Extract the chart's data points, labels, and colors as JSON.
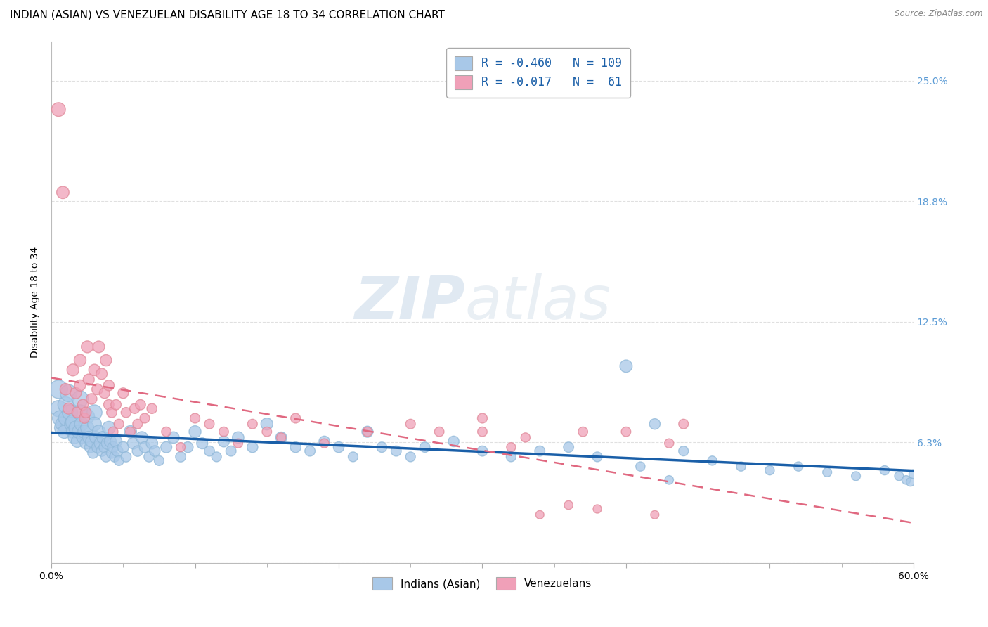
{
  "title": "INDIAN (ASIAN) VS VENEZUELAN DISABILITY AGE 18 TO 34 CORRELATION CHART",
  "source": "Source: ZipAtlas.com",
  "ylabel": "Disability Age 18 to 34",
  "xlim": [
    0.0,
    0.6
  ],
  "ylim": [
    0.0,
    0.27
  ],
  "ytick_vals": [
    0.0,
    0.0625,
    0.125,
    0.1875,
    0.25
  ],
  "ytick_labels": [
    "",
    "6.3%",
    "12.5%",
    "18.8%",
    "25.0%"
  ],
  "xtick_vals": [
    0.0,
    0.1,
    0.2,
    0.3,
    0.4,
    0.5,
    0.6
  ],
  "xtick_labels_sparse": [
    "0.0%",
    "",
    "",
    "",
    "",
    "",
    "60.0%"
  ],
  "blue_color": "#a8c8e8",
  "pink_color": "#f0a0b8",
  "blue_edge_color": "#90b8d8",
  "pink_edge_color": "#e08898",
  "blue_line_color": "#1a5fa8",
  "pink_line_color": "#e06880",
  "grid_color": "#e0e0e0",
  "background_color": "#ffffff",
  "watermark_zip": "ZIP",
  "watermark_atlas": "atlas",
  "title_fontsize": 11,
  "axis_label_fontsize": 10,
  "tick_fontsize": 10,
  "right_tick_color": "#5b9bd5",
  "blue_scatter_x": [
    0.005,
    0.005,
    0.006,
    0.007,
    0.008,
    0.009,
    0.01,
    0.01,
    0.012,
    0.013,
    0.014,
    0.015,
    0.015,
    0.016,
    0.017,
    0.018,
    0.019,
    0.02,
    0.02,
    0.021,
    0.022,
    0.023,
    0.024,
    0.025,
    0.025,
    0.026,
    0.027,
    0.028,
    0.029,
    0.03,
    0.03,
    0.031,
    0.032,
    0.033,
    0.034,
    0.035,
    0.036,
    0.037,
    0.038,
    0.039,
    0.04,
    0.041,
    0.042,
    0.043,
    0.044,
    0.045,
    0.046,
    0.047,
    0.05,
    0.052,
    0.055,
    0.057,
    0.06,
    0.063,
    0.065,
    0.068,
    0.07,
    0.072,
    0.075,
    0.08,
    0.085,
    0.09,
    0.095,
    0.1,
    0.105,
    0.11,
    0.115,
    0.12,
    0.125,
    0.13,
    0.14,
    0.15,
    0.16,
    0.17,
    0.18,
    0.19,
    0.2,
    0.21,
    0.22,
    0.23,
    0.24,
    0.25,
    0.26,
    0.28,
    0.3,
    0.32,
    0.34,
    0.36,
    0.38,
    0.4,
    0.42,
    0.44,
    0.46,
    0.48,
    0.5,
    0.52,
    0.54,
    0.56,
    0.58,
    0.59,
    0.595,
    0.598,
    0.6,
    0.41,
    0.43
  ],
  "blue_scatter_y": [
    0.09,
    0.08,
    0.075,
    0.07,
    0.072,
    0.068,
    0.082,
    0.075,
    0.088,
    0.078,
    0.072,
    0.068,
    0.073,
    0.065,
    0.07,
    0.063,
    0.068,
    0.085,
    0.078,
    0.072,
    0.065,
    0.068,
    0.062,
    0.076,
    0.07,
    0.065,
    0.06,
    0.063,
    0.057,
    0.078,
    0.072,
    0.065,
    0.06,
    0.068,
    0.062,
    0.058,
    0.065,
    0.06,
    0.055,
    0.062,
    0.07,
    0.063,
    0.057,
    0.06,
    0.055,
    0.063,
    0.058,
    0.053,
    0.06,
    0.055,
    0.068,
    0.062,
    0.058,
    0.065,
    0.06,
    0.055,
    0.062,
    0.058,
    0.053,
    0.06,
    0.065,
    0.055,
    0.06,
    0.068,
    0.062,
    0.058,
    0.055,
    0.063,
    0.058,
    0.065,
    0.06,
    0.072,
    0.065,
    0.06,
    0.058,
    0.063,
    0.06,
    0.055,
    0.068,
    0.06,
    0.058,
    0.055,
    0.06,
    0.063,
    0.058,
    0.055,
    0.058,
    0.06,
    0.055,
    0.102,
    0.072,
    0.058,
    0.053,
    0.05,
    0.048,
    0.05,
    0.047,
    0.045,
    0.048,
    0.045,
    0.043,
    0.042,
    0.046,
    0.05,
    0.043
  ],
  "blue_scatter_sizes": [
    350,
    280,
    240,
    200,
    220,
    180,
    260,
    220,
    300,
    250,
    200,
    180,
    220,
    160,
    200,
    150,
    180,
    280,
    240,
    200,
    160,
    180,
    140,
    220,
    190,
    160,
    130,
    150,
    120,
    240,
    200,
    160,
    130,
    180,
    150,
    120,
    160,
    130,
    110,
    150,
    180,
    150,
    120,
    130,
    110,
    150,
    130,
    100,
    130,
    110,
    160,
    140,
    120,
    150,
    130,
    110,
    140,
    120,
    100,
    130,
    140,
    110,
    120,
    150,
    130,
    110,
    100,
    130,
    110,
    140,
    120,
    150,
    130,
    120,
    110,
    120,
    120,
    100,
    130,
    110,
    110,
    100,
    110,
    120,
    110,
    100,
    110,
    110,
    100,
    160,
    120,
    100,
    90,
    90,
    90,
    90,
    85,
    85,
    90,
    85,
    80,
    78,
    85,
    90,
    80
  ],
  "pink_scatter_x": [
    0.005,
    0.008,
    0.01,
    0.012,
    0.015,
    0.017,
    0.018,
    0.02,
    0.02,
    0.022,
    0.023,
    0.024,
    0.025,
    0.026,
    0.028,
    0.03,
    0.032,
    0.033,
    0.035,
    0.037,
    0.038,
    0.04,
    0.04,
    0.042,
    0.043,
    0.045,
    0.047,
    0.05,
    0.052,
    0.055,
    0.058,
    0.06,
    0.062,
    0.065,
    0.07,
    0.08,
    0.09,
    0.1,
    0.11,
    0.12,
    0.13,
    0.14,
    0.15,
    0.16,
    0.17,
    0.19,
    0.22,
    0.25,
    0.27,
    0.3,
    0.33,
    0.37,
    0.4,
    0.43,
    0.44,
    0.36,
    0.38,
    0.42,
    0.3,
    0.32,
    0.34
  ],
  "pink_scatter_y": [
    0.235,
    0.192,
    0.09,
    0.08,
    0.1,
    0.088,
    0.078,
    0.105,
    0.092,
    0.082,
    0.075,
    0.078,
    0.112,
    0.095,
    0.085,
    0.1,
    0.09,
    0.112,
    0.098,
    0.088,
    0.105,
    0.092,
    0.082,
    0.078,
    0.068,
    0.082,
    0.072,
    0.088,
    0.078,
    0.068,
    0.08,
    0.072,
    0.082,
    0.075,
    0.08,
    0.068,
    0.06,
    0.075,
    0.072,
    0.068,
    0.062,
    0.072,
    0.068,
    0.065,
    0.075,
    0.062,
    0.068,
    0.072,
    0.068,
    0.075,
    0.065,
    0.068,
    0.068,
    0.062,
    0.072,
    0.03,
    0.028,
    0.025,
    0.068,
    0.06,
    0.025
  ],
  "pink_scatter_sizes": [
    200,
    160,
    140,
    130,
    150,
    130,
    120,
    150,
    130,
    120,
    110,
    120,
    150,
    130,
    120,
    140,
    125,
    145,
    130,
    115,
    135,
    120,
    110,
    110,
    100,
    110,
    100,
    115,
    105,
    95,
    105,
    98,
    110,
    100,
    105,
    95,
    88,
    100,
    98,
    95,
    88,
    98,
    95,
    90,
    100,
    88,
    95,
    98,
    95,
    100,
    90,
    95,
    95,
    88,
    98,
    80,
    75,
    72,
    95,
    88,
    72
  ]
}
